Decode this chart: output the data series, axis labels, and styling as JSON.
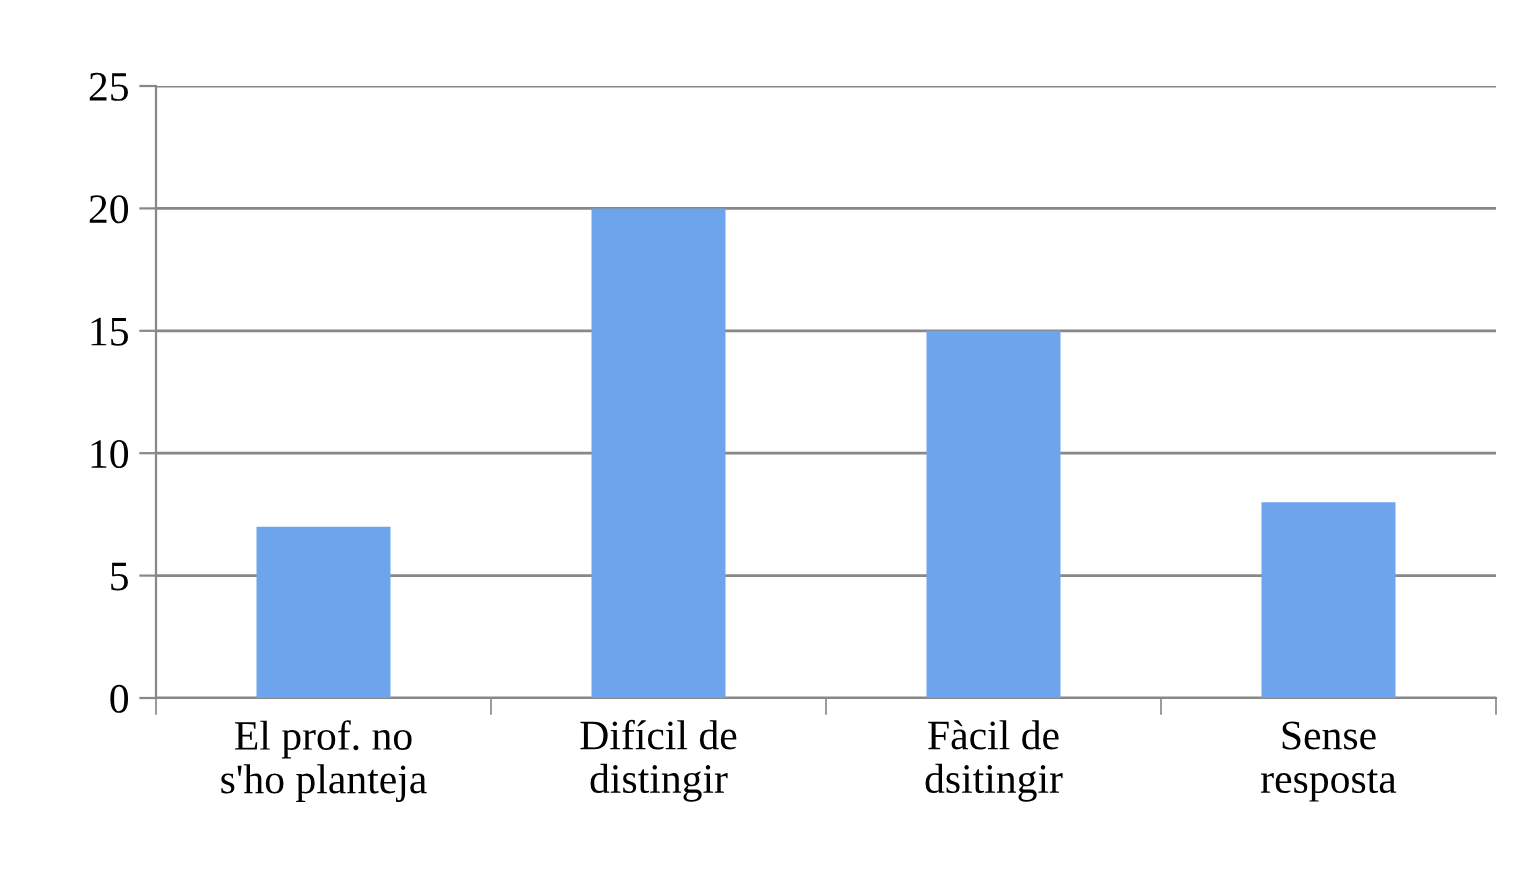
{
  "chart_data": {
    "type": "bar",
    "categories": [
      "El prof. no\ns'ho planteja",
      "Difícil de\ndistingir",
      "Fàcil de\ndsitingir",
      "Sense\nresposta"
    ],
    "values": [
      7,
      20,
      15,
      8
    ],
    "color": "#6da4eb",
    "ylim": [
      0,
      25
    ],
    "yticks": [
      0,
      5,
      10,
      15,
      20,
      25
    ],
    "grid": "y"
  }
}
